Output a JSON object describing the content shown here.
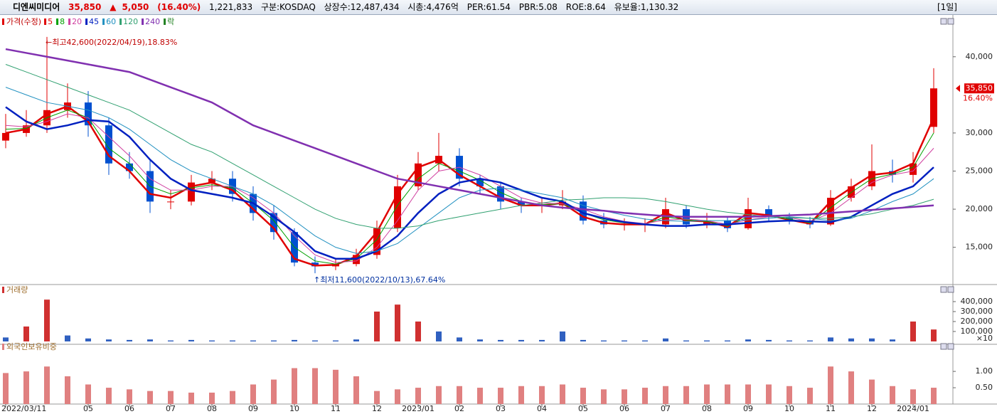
{
  "header": {
    "name": "디엔씨미디어",
    "price": "35,850",
    "arrow": "▲",
    "change": "5,050",
    "change_pct": "(16.40%)",
    "volume": "1,221,833",
    "market": "구분:KOSDAQ",
    "shares": "상장수:12,487,434",
    "mcap": "시총:4,476억",
    "per": "PER:61.54",
    "pbr": "PBR:5.08",
    "roe": "ROE:8.64",
    "reserve": "유보율:1,130.32",
    "period": "[1일]"
  },
  "chart_data": [
    {
      "type": "candlestick",
      "title": "가격(수정)",
      "legend_extra": [
        "락"
      ],
      "categories": [
        "2022/03/11",
        null,
        null,
        null,
        "05",
        null,
        "06",
        null,
        "07",
        null,
        "08",
        null,
        "09",
        null,
        "10",
        null,
        "11",
        null,
        "12",
        null,
        "2023/01",
        null,
        "02",
        null,
        "03",
        null,
        "04",
        null,
        "05",
        null,
        "06",
        null,
        "07",
        null,
        "08",
        null,
        "09",
        null,
        "10",
        null,
        "11",
        null,
        "12",
        null,
        "2024/01",
        null
      ],
      "open": [
        29000,
        30000,
        31000,
        33000,
        34000,
        31000,
        26000,
        25000,
        21000,
        21000,
        23500,
        24000,
        22000,
        19500,
        17000,
        13000,
        12500,
        12800,
        14000,
        17500,
        23000,
        26000,
        27000,
        24000,
        23000,
        21000,
        20500,
        20500,
        21000,
        18500,
        18000,
        18000,
        18000,
        20000,
        18000,
        18500,
        17500,
        20000,
        19000,
        18500,
        18000,
        21500,
        23000,
        25000,
        24500,
        30800
      ],
      "high": [
        32500,
        33000,
        42600,
        36500,
        35500,
        32000,
        27500,
        26500,
        22500,
        24500,
        25000,
        25000,
        23000,
        20500,
        17500,
        13800,
        13500,
        14800,
        18500,
        24500,
        27500,
        30000,
        28000,
        24500,
        23500,
        21500,
        21500,
        22500,
        21800,
        19500,
        18800,
        18800,
        21500,
        20500,
        19500,
        19000,
        21500,
        20500,
        19500,
        19000,
        22500,
        24000,
        28500,
        26500,
        27500,
        38500
      ],
      "low": [
        28000,
        29500,
        30000,
        32000,
        29500,
        24500,
        24000,
        19500,
        20000,
        20500,
        22500,
        21000,
        18500,
        16000,
        12500,
        11600,
        12000,
        12500,
        13500,
        17000,
        22500,
        25000,
        23000,
        22000,
        20000,
        19500,
        19500,
        20000,
        18000,
        17500,
        17200,
        17000,
        17500,
        17500,
        17500,
        17000,
        17300,
        18500,
        18000,
        17500,
        17800,
        21000,
        22500,
        23500,
        23500,
        30000
      ],
      "close": [
        30000,
        31000,
        33000,
        34000,
        31000,
        26000,
        25000,
        21000,
        21000,
        23500,
        24000,
        22000,
        19500,
        17000,
        13000,
        12500,
        12800,
        14000,
        17500,
        23000,
        26000,
        27000,
        24000,
        23000,
        21000,
        20500,
        20500,
        21000,
        18500,
        18000,
        18000,
        18000,
        20000,
        18000,
        18500,
        17500,
        20000,
        19000,
        18500,
        18000,
        21500,
        23000,
        25000,
        24500,
        26000,
        35850
      ],
      "up_color": "#e00000",
      "down_color": "#0050d0",
      "series": [
        {
          "name": "5",
          "color": "#e00000",
          "width": 2.5,
          "values": [
            30000,
            30500,
            32500,
            33500,
            31500,
            27000,
            25000,
            22000,
            21500,
            23000,
            23500,
            22500,
            20000,
            17500,
            13500,
            12600,
            12700,
            13800,
            17000,
            22000,
            25500,
            26500,
            24500,
            23000,
            21500,
            20500,
            20500,
            20800,
            19000,
            18200,
            18000,
            18000,
            19500,
            18500,
            18400,
            17700,
            19500,
            19200,
            18600,
            18100,
            21000,
            22800,
            24500,
            24800,
            26000,
            32000
          ]
        },
        {
          "name": "8",
          "color": "#00a000",
          "width": 1,
          "values": [
            30500,
            30600,
            32000,
            33000,
            32000,
            28000,
            26000,
            23000,
            22000,
            22800,
            23200,
            22800,
            20800,
            18500,
            15000,
            13200,
            12800,
            13500,
            16000,
            20500,
            24000,
            26000,
            25000,
            23800,
            22200,
            21000,
            20600,
            20700,
            19500,
            18600,
            18200,
            18000,
            19000,
            18600,
            18400,
            17800,
            19000,
            19100,
            18700,
            18200,
            20200,
            22200,
            24000,
            24600,
            25500,
            30000
          ]
        },
        {
          "name": "20",
          "color": "#d040a0",
          "width": 1,
          "values": [
            31000,
            30800,
            31500,
            32500,
            32000,
            29500,
            27000,
            24000,
            22500,
            22500,
            23000,
            23000,
            21500,
            19500,
            16500,
            14000,
            13000,
            13200,
            15000,
            18500,
            22500,
            25000,
            25500,
            24500,
            23000,
            21500,
            20800,
            20700,
            20000,
            19000,
            18400,
            18100,
            18600,
            18700,
            18500,
            18000,
            18600,
            19000,
            18900,
            18400,
            19500,
            21500,
            23500,
            24500,
            25000,
            28000
          ]
        },
        {
          "name": "45",
          "color": "#0020c0",
          "width": 2.5,
          "values": [
            33400,
            31500,
            30500,
            31000,
            31700,
            31500,
            29500,
            26500,
            24000,
            22500,
            22000,
            21500,
            20800,
            19000,
            17000,
            14500,
            13500,
            13500,
            14500,
            16500,
            19500,
            22000,
            23500,
            24000,
            23500,
            22500,
            21500,
            21000,
            19500,
            18800,
            18300,
            18000,
            17800,
            17800,
            18000,
            18000,
            18200,
            18400,
            18500,
            18400,
            18300,
            19000,
            20500,
            22000,
            23000,
            25500
          ]
        },
        {
          "name": "60",
          "color": "#2090c0",
          "width": 1,
          "values": [
            36000,
            35000,
            34000,
            33500,
            33000,
            32000,
            30500,
            28500,
            26500,
            25000,
            24000,
            23000,
            22000,
            20500,
            18500,
            16500,
            15000,
            14200,
            14500,
            15500,
            17500,
            19500,
            21500,
            22500,
            22800,
            22500,
            22000,
            21500,
            20500,
            19800,
            19200,
            18700,
            18500,
            18400,
            18500,
            18500,
            18600,
            18800,
            19000,
            18800,
            18500,
            18800,
            19800,
            21000,
            22000,
            24000
          ]
        },
        {
          "name": "120",
          "color": "#30a070",
          "width": 1,
          "values": [
            39000,
            38000,
            37000,
            36000,
            35000,
            34000,
            33000,
            31500,
            30000,
            28500,
            27500,
            26000,
            24500,
            23000,
            21500,
            20000,
            18800,
            18000,
            17500,
            17500,
            17800,
            18500,
            19000,
            19500,
            20000,
            20500,
            20800,
            21200,
            21300,
            21500,
            21500,
            21400,
            21000,
            20500,
            20000,
            19600,
            19300,
            19000,
            18900,
            18800,
            18800,
            19000,
            19400,
            20000,
            20500,
            21300
          ]
        },
        {
          "name": "240",
          "color": "#8030b0",
          "width": 2.5,
          "values": [
            41000,
            40500,
            40000,
            39500,
            39000,
            38500,
            38000,
            37000,
            36000,
            35000,
            34000,
            32500,
            31000,
            30000,
            29000,
            28000,
            27000,
            26000,
            25000,
            24000,
            23500,
            23000,
            22500,
            22000,
            21500,
            21000,
            20500,
            20200,
            20000,
            19800,
            19500,
            19300,
            19100,
            19000,
            19000,
            19000,
            19000,
            19100,
            19200,
            19300,
            19500,
            19700,
            19900,
            20100,
            20300,
            20500
          ]
        }
      ],
      "ylim": [
        10300,
        45300
      ],
      "yticks": [
        {
          "value": 40000,
          "label": "40,000"
        },
        {
          "value": 30000,
          "label": "30,000"
        },
        {
          "value": 25000,
          "label": "25,000"
        },
        {
          "value": 20000,
          "label": "20,000"
        },
        {
          "value": 15000,
          "label": "15,000"
        }
      ],
      "last_label": "35,850",
      "last_change_label": "16.40%",
      "annotations": [
        "←최고42,600(2022/04/19),18.83%",
        "↑최저11,600(2022/10/13),67.64%"
      ]
    },
    {
      "type": "bar",
      "title": "거래량",
      "color": "#3060c0",
      "spike_color": "#d03030",
      "unit_label": "×10",
      "values": [
        40000,
        150000,
        420000,
        60000,
        30000,
        20000,
        15000,
        20000,
        10000,
        15000,
        10000,
        10000,
        10000,
        10000,
        15000,
        10000,
        10000,
        20000,
        300000,
        370000,
        200000,
        100000,
        40000,
        20000,
        15000,
        15000,
        15000,
        100000,
        15000,
        10000,
        10000,
        10000,
        30000,
        10000,
        10000,
        10000,
        20000,
        15000,
        10000,
        10000,
        40000,
        30000,
        30000,
        20000,
        200000,
        120000
      ],
      "ylim": [
        0,
        500000
      ],
      "yticks": [
        {
          "value": 400000,
          "label": "400,000"
        },
        {
          "value": 300000,
          "label": "300,000"
        },
        {
          "value": 200000,
          "label": "200,000"
        },
        {
          "value": 100000,
          "label": "100,000"
        }
      ]
    },
    {
      "type": "bar",
      "title": "외국인보유비중",
      "color": "#e08080",
      "values": [
        0.95,
        1.0,
        1.15,
        0.85,
        0.6,
        0.5,
        0.45,
        0.4,
        0.4,
        0.35,
        0.35,
        0.4,
        0.6,
        0.75,
        1.1,
        1.1,
        1.05,
        0.85,
        0.4,
        0.45,
        0.5,
        0.55,
        0.55,
        0.5,
        0.5,
        0.55,
        0.55,
        0.6,
        0.5,
        0.45,
        0.45,
        0.5,
        0.55,
        0.55,
        0.6,
        0.6,
        0.6,
        0.6,
        0.55,
        0.5,
        1.15,
        1.0,
        0.75,
        0.55,
        0.45,
        0.5
      ],
      "ylim": [
        0,
        1.7
      ],
      "yticks": [
        {
          "value": 1,
          "label": "1.00"
        },
        {
          "value": 0.5,
          "label": "0.50"
        }
      ]
    }
  ]
}
